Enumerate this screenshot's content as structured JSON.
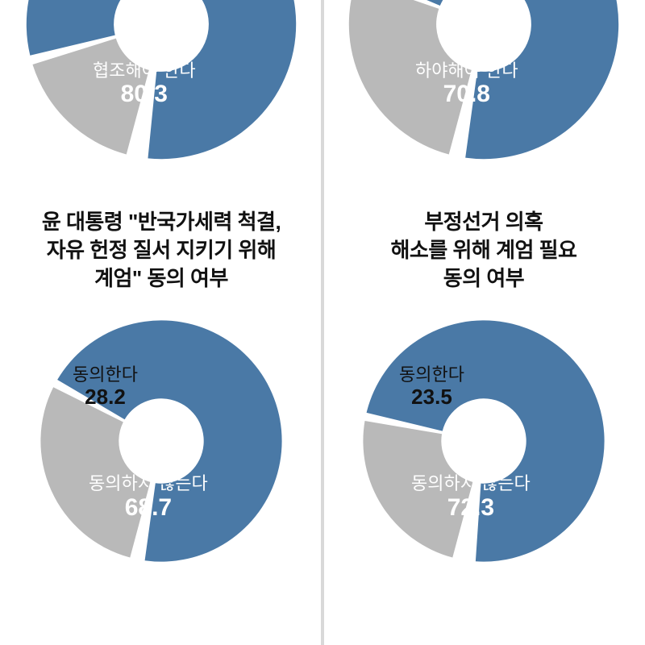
{
  "colors": {
    "primary": "#4a79a6",
    "secondary": "#b9b9b9",
    "gap": "#ffffff",
    "text": "#111111",
    "lightText": "#ffffff",
    "divider": "#d9d9d9",
    "bg": "#ffffff"
  },
  "donut": {
    "outer_r": 150,
    "inner_r": 52,
    "gap_deg": 4
  },
  "charts": {
    "top_left": {
      "type": "donut",
      "title": "",
      "primary": {
        "label": "협조해야 한다",
        "value": 80.3,
        "color": "#4a79a6",
        "text_color": "#ffffff"
      },
      "secondary": {
        "label": "",
        "value": 16.0,
        "color": "#b9b9b9",
        "text_color": "#111111"
      },
      "remainder_gap": 3.7
    },
    "top_right": {
      "type": "donut",
      "title": "",
      "primary": {
        "label": "하야해야 한다",
        "value": 70.8,
        "color": "#4a79a6",
        "text_color": "#ffffff"
      },
      "secondary": {
        "label": "",
        "value": 26.1,
        "color": "#b9b9b9",
        "text_color": "#111111"
      },
      "remainder_gap": 3.1
    },
    "bottom_left": {
      "type": "donut",
      "title": "윤 대통령 \"반국가세력 척결,\n자유 헌정 질서 지키기 위해\n계엄\" 동의 여부",
      "primary": {
        "label": "동의하지 않는다",
        "value": 68.7,
        "color": "#4a79a6",
        "text_color": "#ffffff"
      },
      "secondary": {
        "label": "동의한다",
        "value": 28.2,
        "color": "#b9b9b9",
        "text_color": "#111111"
      },
      "remainder_gap": 3.1
    },
    "bottom_right": {
      "type": "donut",
      "title": "부정선거 의혹\n해소를 위해 계엄 필요\n동의 여부",
      "primary": {
        "label": "동의하지 않는다",
        "value": 72.3,
        "color": "#4a79a6",
        "text_color": "#ffffff"
      },
      "secondary": {
        "label": "동의한다",
        "value": 23.5,
        "color": "#b9b9b9",
        "text_color": "#111111"
      },
      "remainder_gap": 4.2
    }
  },
  "typography": {
    "title_fontsize": 26,
    "label_fontsize": 22,
    "value_fontsize": 30,
    "title_weight": 700,
    "value_weight": 800
  }
}
